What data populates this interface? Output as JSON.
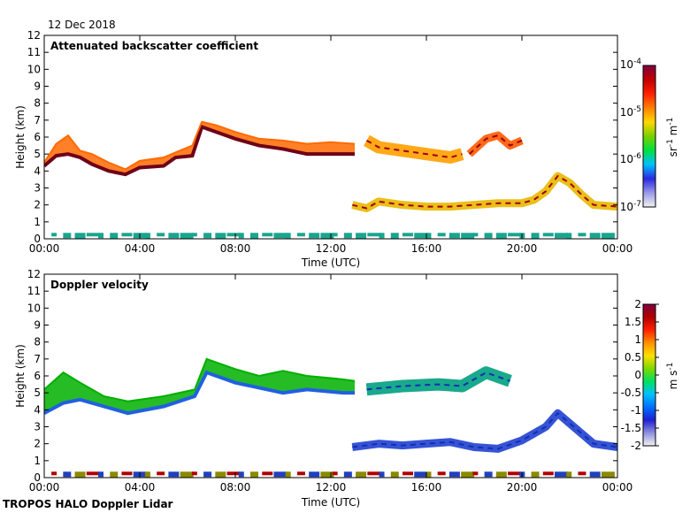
{
  "figure": {
    "date": "12 Dec 2018",
    "footer": "TROPOS HALO Doppler Lidar"
  },
  "chart_data": [
    {
      "type": "heatmap",
      "title": "Attenuated backscatter coefficient",
      "xlabel": "Time (UTC)",
      "ylabel": "Height (km)",
      "xticks": [
        "00:00",
        "04:00",
        "08:00",
        "12:00",
        "16:00",
        "20:00",
        "00:00"
      ],
      "yticks": [
        "0",
        "1",
        "2",
        "3",
        "4",
        "5",
        "6",
        "7",
        "8",
        "9",
        "10",
        "11",
        "12"
      ],
      "xlim_hours": [
        0,
        24
      ],
      "ylim_km": [
        0,
        12
      ],
      "colorbar": {
        "label": "sr-1 m-1",
        "scale": "log",
        "range": [
          1e-07,
          0.0001
        ],
        "tick_labels": [
          "10-4",
          "10-5",
          "10-6",
          "10-7"
        ],
        "colormap": [
          "#f2f2f2",
          "#9a9ae8",
          "#2a2ae0",
          "#00c0ff",
          "#00e040",
          "#7ad000",
          "#ffd800",
          "#ff8000",
          "#ff2000",
          "#c00000",
          "#800040"
        ]
      },
      "layers": [
        {
          "name": "cloud top",
          "color": "#ff6a00",
          "points": [
            [
              0.0,
              4.5
            ],
            [
              0.5,
              5.6
            ],
            [
              1.0,
              6.1
            ],
            [
              1.5,
              5.2
            ],
            [
              2.0,
              5.0
            ],
            [
              2.7,
              4.5
            ],
            [
              3.4,
              4.1
            ],
            [
              4.0,
              4.6
            ],
            [
              5.0,
              4.8
            ],
            [
              5.5,
              5.1
            ],
            [
              6.2,
              5.5
            ],
            [
              6.6,
              6.9
            ],
            [
              7.2,
              6.7
            ],
            [
              8.0,
              6.3
            ],
            [
              9.0,
              5.9
            ],
            [
              10.0,
              5.8
            ],
            [
              11.0,
              5.6
            ],
            [
              12.0,
              5.7
            ],
            [
              13.0,
              5.6
            ]
          ]
        },
        {
          "name": "cloud base",
          "color": "#6e0018",
          "points": [
            [
              0.0,
              4.3
            ],
            [
              0.5,
              4.9
            ],
            [
              1.0,
              5.0
            ],
            [
              1.5,
              4.8
            ],
            [
              2.0,
              4.4
            ],
            [
              2.7,
              4.0
            ],
            [
              3.4,
              3.8
            ],
            [
              4.0,
              4.2
            ],
            [
              5.0,
              4.3
            ],
            [
              5.5,
              4.8
            ],
            [
              6.2,
              4.9
            ],
            [
              6.6,
              6.6
            ],
            [
              7.2,
              6.3
            ],
            [
              8.0,
              5.9
            ],
            [
              9.0,
              5.5
            ],
            [
              10.0,
              5.3
            ],
            [
              11.0,
              5.0
            ],
            [
              12.0,
              5.0
            ],
            [
              13.0,
              5.0
            ]
          ]
        },
        {
          "name": "upper layer",
          "color": "#ffa000",
          "points": [
            [
              13.5,
              5.8
            ],
            [
              14.0,
              5.4
            ],
            [
              15.0,
              5.2
            ],
            [
              16.0,
              5.0
            ],
            [
              17.0,
              4.8
            ],
            [
              17.5,
              5.0
            ]
          ]
        },
        {
          "name": "upper layer 2",
          "color": "#ff5a00",
          "points": [
            [
              17.8,
              5.0
            ],
            [
              18.5,
              5.9
            ],
            [
              19.0,
              6.1
            ],
            [
              19.5,
              5.5
            ],
            [
              20.0,
              5.8
            ]
          ]
        },
        {
          "name": "low cloud",
          "color": "#e8b800",
          "points": [
            [
              12.9,
              2.0
            ],
            [
              13.5,
              1.8
            ],
            [
              14.0,
              2.2
            ],
            [
              15.0,
              2.0
            ],
            [
              16.0,
              1.9
            ],
            [
              17.0,
              1.9
            ],
            [
              18.0,
              2.0
            ],
            [
              19.0,
              2.1
            ],
            [
              20.0,
              2.1
            ],
            [
              20.5,
              2.3
            ],
            [
              21.0,
              2.8
            ],
            [
              21.5,
              3.7
            ],
            [
              22.0,
              3.3
            ],
            [
              22.5,
              2.6
            ],
            [
              23.0,
              2.0
            ],
            [
              24.0,
              1.9
            ]
          ]
        }
      ]
    },
    {
      "type": "heatmap",
      "title": "Doppler velocity",
      "xlabel": "Time (UTC)",
      "ylabel": "Height (km)",
      "xticks": [
        "00:00",
        "04:00",
        "08:00",
        "12:00",
        "16:00",
        "20:00",
        "00:00"
      ],
      "yticks": [
        "0",
        "1",
        "2",
        "3",
        "4",
        "5",
        "6",
        "7",
        "8",
        "9",
        "10",
        "11",
        "12"
      ],
      "xlim_hours": [
        0,
        24
      ],
      "ylim_km": [
        0,
        12
      ],
      "colorbar": {
        "label": "m s-1",
        "scale": "linear",
        "range": [
          -2,
          2
        ],
        "tick_labels": [
          "2",
          "1.5",
          "1",
          "0.5",
          "0",
          "-0.5",
          "-1",
          "-1.5",
          "-2"
        ],
        "colormap": [
          "#f2f2f2",
          "#9090e0",
          "#2020d0",
          "#0070ff",
          "#00c0ff",
          "#00e060",
          "#80d800",
          "#ffe000",
          "#ff9000",
          "#ff2000",
          "#b00000",
          "#800040"
        ]
      },
      "layers": [
        {
          "name": "cloud top",
          "color": "#00b000",
          "points": [
            [
              0.0,
              5.2
            ],
            [
              0.8,
              6.2
            ],
            [
              1.5,
              5.6
            ],
            [
              2.5,
              4.8
            ],
            [
              3.5,
              4.5
            ],
            [
              5.0,
              4.8
            ],
            [
              6.3,
              5.2
            ],
            [
              6.8,
              7.0
            ],
            [
              8.0,
              6.4
            ],
            [
              9.0,
              6.0
            ],
            [
              10.0,
              6.3
            ],
            [
              11.0,
              6.0
            ],
            [
              12.5,
              5.8
            ],
            [
              13.0,
              5.7
            ]
          ]
        },
        {
          "name": "cloud base",
          "color": "#2060e0",
          "points": [
            [
              0.0,
              3.8
            ],
            [
              0.8,
              4.4
            ],
            [
              1.5,
              4.6
            ],
            [
              2.5,
              4.2
            ],
            [
              3.5,
              3.8
            ],
            [
              5.0,
              4.2
            ],
            [
              6.3,
              4.8
            ],
            [
              6.8,
              6.2
            ],
            [
              8.0,
              5.6
            ],
            [
              9.0,
              5.3
            ],
            [
              10.0,
              5.0
            ],
            [
              11.0,
              5.2
            ],
            [
              12.5,
              5.0
            ],
            [
              13.0,
              5.0
            ]
          ]
        },
        {
          "name": "upper layer",
          "color": "#00a080",
          "points": [
            [
              13.5,
              5.2
            ],
            [
              15.0,
              5.4
            ],
            [
              16.5,
              5.5
            ],
            [
              17.5,
              5.4
            ],
            [
              18.5,
              6.2
            ],
            [
              19.5,
              5.7
            ]
          ]
        },
        {
          "name": "low cloud",
          "color": "#2040d0",
          "points": [
            [
              12.9,
              1.8
            ],
            [
              14.0,
              2.0
            ],
            [
              15.0,
              1.9
            ],
            [
              16.0,
              2.0
            ],
            [
              17.0,
              2.1
            ],
            [
              18.0,
              1.8
            ],
            [
              19.0,
              1.7
            ],
            [
              20.0,
              2.2
            ],
            [
              21.0,
              3.0
            ],
            [
              21.5,
              3.8
            ],
            [
              22.0,
              3.2
            ],
            [
              23.0,
              2.0
            ],
            [
              24.0,
              1.8
            ]
          ]
        }
      ]
    }
  ]
}
